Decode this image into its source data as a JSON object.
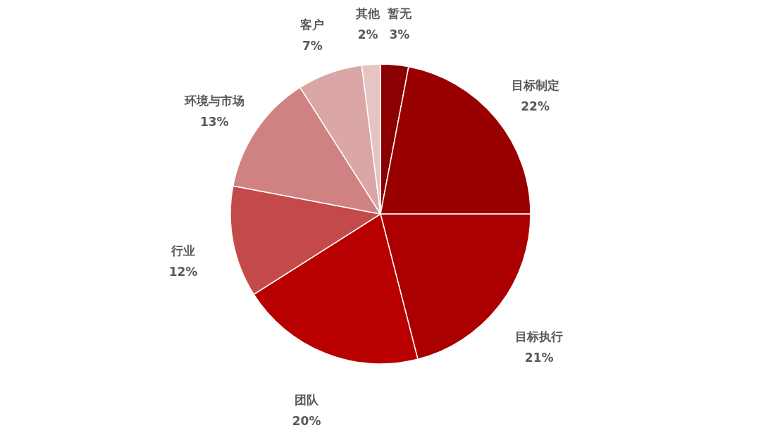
{
  "chart_data": {
    "type": "pie",
    "categories": [
      "暂无",
      "目标制定",
      "目标执行",
      "团队",
      "行业",
      "环境与市场",
      "客户",
      "其他"
    ],
    "values": [
      3,
      22,
      21,
      20,
      12,
      13,
      7,
      2
    ],
    "colors": [
      "#8b0000",
      "#990000",
      "#aa0000",
      "#b80000",
      "#c44a4a",
      "#d08282",
      "#dba6a6",
      "#e6c4c4"
    ],
    "value_labels": [
      "3%",
      "22%",
      "21%",
      "20%",
      "12%",
      "13%",
      "7%",
      "2%"
    ]
  }
}
